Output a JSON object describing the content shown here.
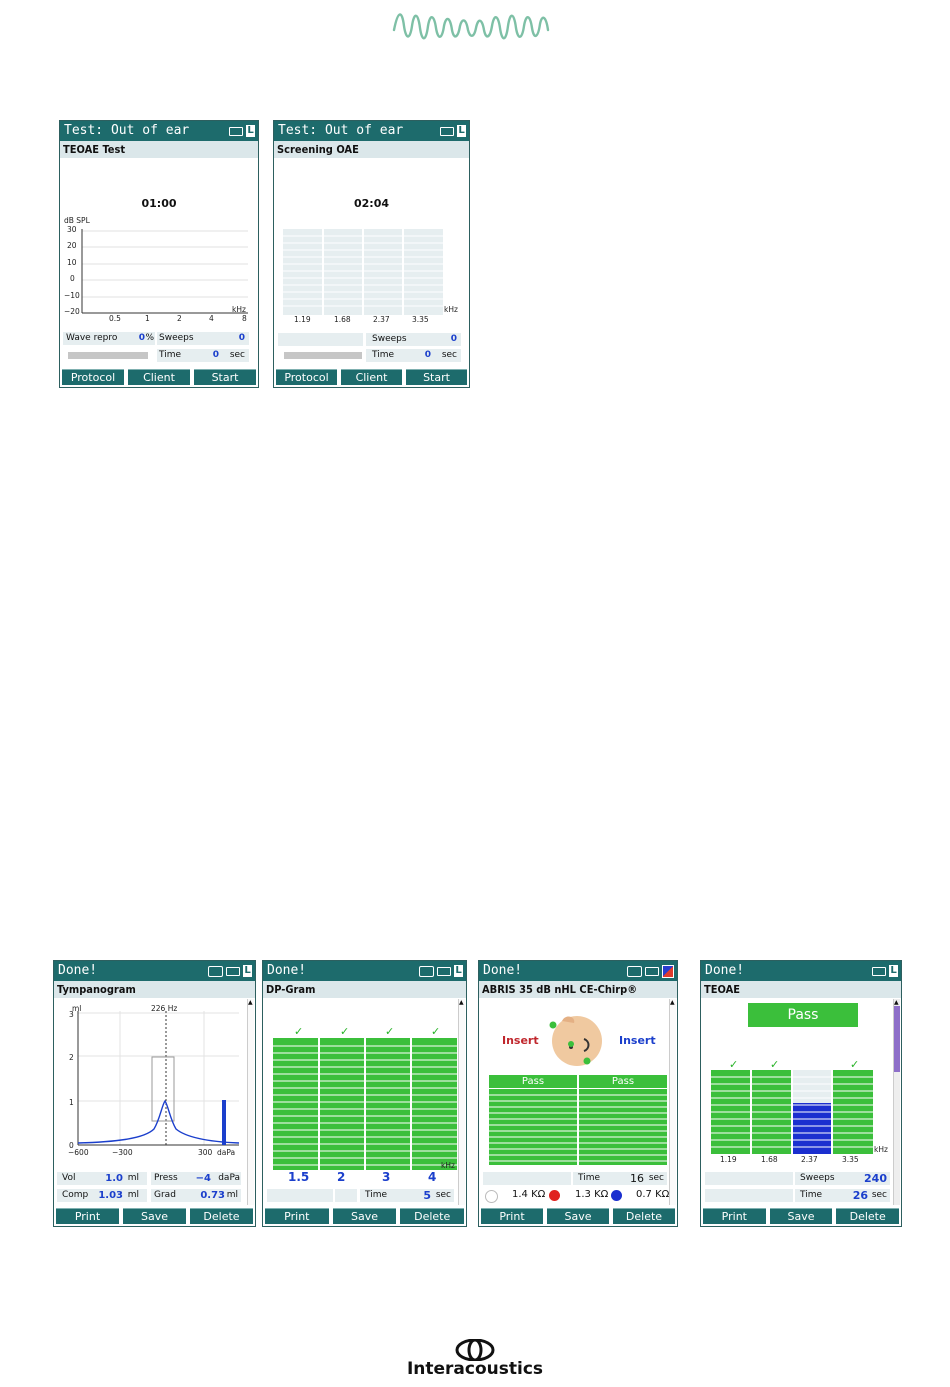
{
  "logo_top": {
    "name": "waveform-logo"
  },
  "screens_top": [
    {
      "title": "Test: Out of ear",
      "subtitle": "TEOAE Test",
      "timer": "01:00",
      "y_unit": "dB SPL",
      "y_ticks": [
        "30",
        "20",
        "10",
        "0",
        "−10",
        "−20"
      ],
      "x_ticks": [
        "0.5",
        "1",
        "2",
        "4",
        "8"
      ],
      "x_unit": "kHz",
      "wave_repro_label": "Wave repro",
      "wave_repro_value": "0",
      "wave_repro_unit": "%",
      "sweeps_label": "Sweeps",
      "sweeps_value": "0",
      "time_label": "Time",
      "time_value": "0",
      "time_unit": "sec",
      "softkeys": [
        "Protocol",
        "Client",
        "Start"
      ]
    },
    {
      "title": "Test: Out of ear",
      "subtitle": "Screening OAE",
      "timer": "02:04",
      "x_ticks": [
        "1.19",
        "1.68",
        "2.37",
        "3.35"
      ],
      "x_unit": "kHz",
      "sweeps_label": "Sweeps",
      "sweeps_value": "0",
      "time_label": "Time",
      "time_value": "0",
      "time_unit": "sec",
      "softkeys": [
        "Protocol",
        "Client",
        "Start"
      ]
    }
  ],
  "screens_bottom": [
    {
      "title": "Done!",
      "subtitle": "Tympanogram",
      "probe_freq": "226 Hz",
      "y_unit": "ml",
      "y_ticks": [
        "3",
        "2",
        "1",
        "0"
      ],
      "x_ticks": [
        "−600",
        "−300",
        "300"
      ],
      "x_unit": "daPa",
      "vol_label": "Vol",
      "vol_value": "1.0",
      "vol_unit": "ml",
      "press_label": "Press",
      "press_value": "−4",
      "press_unit": "daPa",
      "comp_label": "Comp",
      "comp_value": "1.03",
      "comp_unit": "ml",
      "grad_label": "Grad",
      "grad_value": "0.73",
      "grad_unit": "ml",
      "softkeys": [
        "Print",
        "Save",
        "Delete"
      ]
    },
    {
      "title": "Done!",
      "subtitle": "DP-Gram",
      "freqs": [
        "1.5",
        "2",
        "3",
        "4"
      ],
      "x_unit": "kHz",
      "time_label": "Time",
      "time_value": "5",
      "time_unit": "sec",
      "softkeys": [
        "Print",
        "Save",
        "Delete"
      ]
    },
    {
      "title": "Done!",
      "subtitle": "ABRIS 35 dB nHL CE-Chirp®",
      "left_label": "Insert",
      "right_label": "Insert",
      "left_result": "Pass",
      "right_result": "Pass",
      "time_label": "Time",
      "time_value": "16",
      "time_unit": "sec",
      "imp1": "1.4 KΩ",
      "imp2": "1.3 KΩ",
      "imp3": "0.7 KΩ",
      "softkeys": [
        "Print",
        "Save",
        "Delete"
      ]
    },
    {
      "title": "Done!",
      "subtitle": "TEOAE",
      "result": "Pass",
      "x_ticks": [
        "1.19",
        "1.68",
        "2.37",
        "3.35"
      ],
      "x_unit": "kHz",
      "sweeps_label": "Sweeps",
      "sweeps_value": "240",
      "time_label": "Time",
      "time_value": "26",
      "time_unit": "sec",
      "softkeys": [
        "Print",
        "Save",
        "Delete"
      ]
    }
  ],
  "brand": "Interacoustics",
  "colors": {
    "titlebar": "#1d6b6c",
    "value_blue": "#1b3fcc",
    "pass_green": "#3bbf3b",
    "logo_green": "#7ec0a6",
    "insert_red": "#c0272d",
    "insert_blue": "#1b3fcc"
  }
}
